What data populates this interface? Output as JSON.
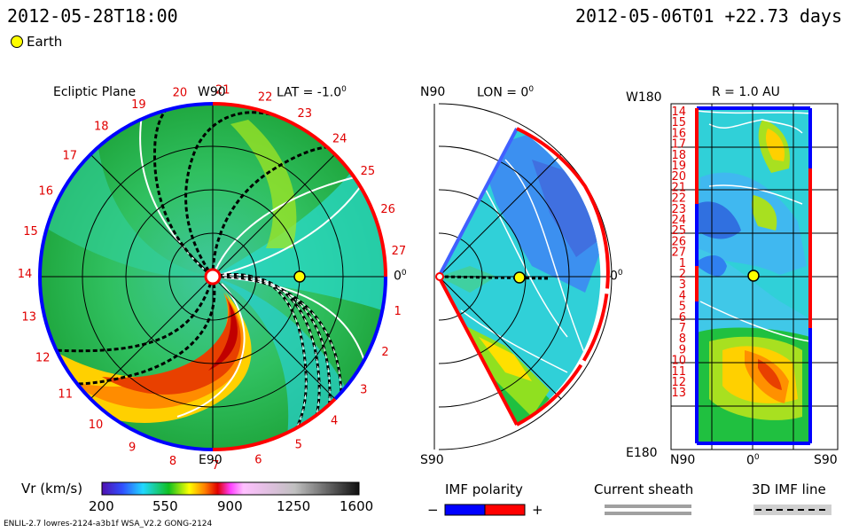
{
  "header": {
    "timestamp_left": "2012-05-28T18:00",
    "timestamp_right": "2012-05-06T01 +22.73 days",
    "earth_legend_label": "Earth"
  },
  "panels": {
    "ecliptic": {
      "title": "Ecliptic Plane",
      "top_label": "W90",
      "bottom_label": "E90",
      "right_label": "0",
      "lat_label": "LAT = -1.0",
      "rotation_labels": [
        "1",
        "2",
        "3",
        "4",
        "5",
        "6",
        "7",
        "8",
        "9",
        "10",
        "11",
        "12",
        "13",
        "14",
        "15",
        "16",
        "17",
        "18",
        "19",
        "20",
        "21",
        "22",
        "23",
        "24",
        "25",
        "26",
        "27"
      ]
    },
    "meridional": {
      "top_label": "N90",
      "lon_label": "LON = 0",
      "bottom_label": "S90",
      "right_label": "0"
    },
    "radial": {
      "top_left_label": "W180",
      "r_label": "R = 1.0 AU",
      "bottom_left_label": "E180",
      "bottom_labels": [
        "N90",
        "0",
        "S90"
      ],
      "rotation_labels": [
        "14",
        "15",
        "16",
        "17",
        "18",
        "19",
        "20",
        "21",
        "22",
        "23",
        "24",
        "25",
        "26",
        "27",
        "1",
        "2",
        "3",
        "4",
        "5",
        "6",
        "7",
        "8",
        "9",
        "10",
        "11",
        "12",
        "13"
      ]
    }
  },
  "colorbar": {
    "label": "Vr (km/s)",
    "ticks": [
      "200",
      "550",
      "900",
      "1250",
      "1600"
    ],
    "min": 200,
    "max": 1600
  },
  "legend": {
    "imf_polarity": "IMF polarity",
    "minus": "−",
    "plus": "+",
    "current_sheath": "Current sheath",
    "imf_line": "3D IMF line"
  },
  "footer": {
    "model_info": "ENLIL-2.7 lowres-2124-a3b1f WSA_V2.2 GONG-2124"
  },
  "colors": {
    "positive_polarity": "#ff0000",
    "negative_polarity": "#0000ff",
    "earth": "#ffff00"
  }
}
